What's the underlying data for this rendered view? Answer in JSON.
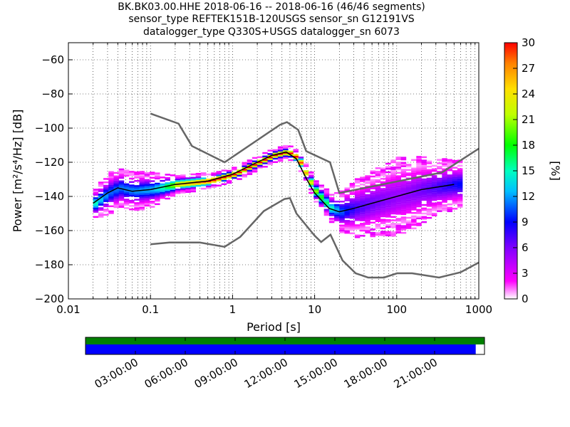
{
  "chart_data": {
    "type": "heatmap",
    "title_lines": [
      "BK.BK03.00.HHE   2018-06-16 -- 2018-06-16  (46/46 segments)",
      "sensor_type REFTEK151B-120USGS sensor_sn G12191VS",
      "datalogger_type Q330S+USGS datalogger_sn 6073"
    ],
    "xlabel": "Period [s]",
    "ylabel": "Power [m²/s⁴/Hz] [dB]",
    "xscale": "log",
    "xlim": [
      0.01,
      1000
    ],
    "ylim": [
      -200,
      -50
    ],
    "xticks": [
      {
        "v": 0.01,
        "label": "0.01"
      },
      {
        "v": 0.1,
        "label": "0.1"
      },
      {
        "v": 1,
        "label": "1"
      },
      {
        "v": 10,
        "label": "10"
      },
      {
        "v": 100,
        "label": "100"
      },
      {
        "v": 1000,
        "label": "1000"
      }
    ],
    "yticks": [
      {
        "v": -60,
        "label": "−60"
      },
      {
        "v": -80,
        "label": "−80"
      },
      {
        "v": -100,
        "label": "−100"
      },
      {
        "v": -120,
        "label": "−120"
      },
      {
        "v": -140,
        "label": "−140"
      },
      {
        "v": -160,
        "label": "−160"
      },
      {
        "v": -180,
        "label": "−180"
      },
      {
        "v": -200,
        "label": "−200"
      }
    ],
    "grid": true,
    "colorbar": {
      "label": "[%]",
      "range": [
        0,
        30
      ],
      "ticks": [
        "0",
        "3",
        "6",
        "9",
        "12",
        "15",
        "18",
        "21",
        "24",
        "27",
        "30"
      ]
    },
    "mean_curve": [
      [
        0.02,
        -144
      ],
      [
        0.03,
        -138
      ],
      [
        0.04,
        -135
      ],
      [
        0.06,
        -137
      ],
      [
        0.1,
        -136
      ],
      [
        0.2,
        -133
      ],
      [
        0.5,
        -131
      ],
      [
        1,
        -127
      ],
      [
        2,
        -120
      ],
      [
        3,
        -116
      ],
      [
        4.5,
        -114
      ],
      [
        6,
        -118
      ],
      [
        8,
        -130
      ],
      [
        10,
        -138
      ],
      [
        15,
        -147
      ],
      [
        20,
        -149
      ],
      [
        30,
        -147
      ],
      [
        50,
        -144
      ],
      [
        100,
        -140
      ],
      [
        200,
        -136
      ],
      [
        500,
        -133
      ]
    ],
    "spread_db": [
      [
        0.02,
        5
      ],
      [
        0.03,
        7
      ],
      [
        0.1,
        6
      ],
      [
        0.2,
        3
      ],
      [
        1,
        2
      ],
      [
        4.5,
        2
      ],
      [
        8,
        3
      ],
      [
        15,
        5
      ],
      [
        30,
        10
      ],
      [
        100,
        14
      ],
      [
        300,
        10
      ],
      [
        600,
        8
      ]
    ],
    "nhnm": [
      [
        0.1,
        -91.5
      ],
      [
        0.22,
        -97.4
      ],
      [
        0.32,
        -110.5
      ],
      [
        0.8,
        -120
      ],
      [
        3.8,
        -98
      ],
      [
        4.6,
        -96.5
      ],
      [
        6.3,
        -101
      ],
      [
        7.9,
        -113.5
      ],
      [
        15.4,
        -120
      ],
      [
        20,
        -138
      ],
      [
        354,
        -126
      ],
      [
        1000,
        -112
      ]
    ],
    "nlnm": [
      [
        0.1,
        -168
      ],
      [
        0.17,
        -167
      ],
      [
        0.4,
        -167
      ],
      [
        0.8,
        -169.5
      ],
      [
        1.24,
        -163.7
      ],
      [
        2.4,
        -148.6
      ],
      [
        4.3,
        -141.5
      ],
      [
        5,
        -141
      ],
      [
        6,
        -150
      ],
      [
        10,
        -163
      ],
      [
        12,
        -166.7
      ],
      [
        15.6,
        -162.4
      ],
      [
        21.9,
        -177.5
      ],
      [
        31.6,
        -185
      ],
      [
        45,
        -187.5
      ],
      [
        70,
        -187.5
      ],
      [
        101,
        -185
      ],
      [
        154,
        -185
      ],
      [
        328,
        -187.5
      ],
      [
        600,
        -184.4
      ],
      [
        1000,
        -178.7
      ]
    ],
    "timeline": {
      "tick_labels": [
        "03:00:00",
        "06:00:00",
        "09:00:00",
        "12:00:00",
        "15:00:00",
        "18:00:00",
        "21:00:00"
      ],
      "data_coverage_fraction": 1.0,
      "used_coverage_fraction": 0.978,
      "colors": {
        "data": "#008000",
        "used": "#0000ff"
      }
    }
  }
}
